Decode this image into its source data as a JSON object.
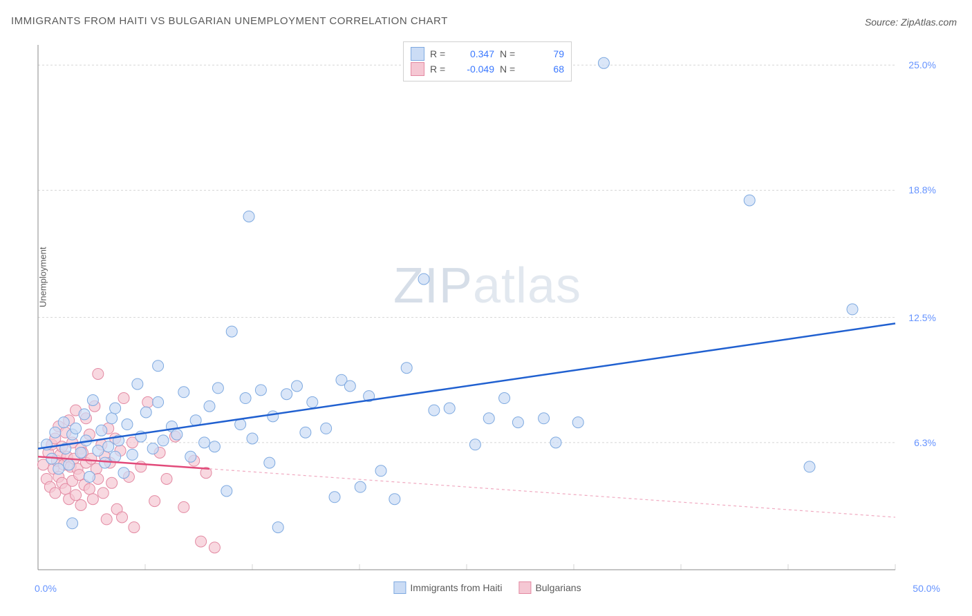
{
  "title": "IMMIGRANTS FROM HAITI VS BULGARIAN UNEMPLOYMENT CORRELATION CHART",
  "source": "Source: ZipAtlas.com",
  "watermark": {
    "bold": "ZIP",
    "light": "atlas"
  },
  "chart": {
    "type": "scatter",
    "ylabel": "Unemployment",
    "xlim": [
      0,
      50
    ],
    "ylim": [
      0,
      26
    ],
    "xtick_labels": {
      "min": "0.0%",
      "max": "50.0%"
    },
    "ytick_labels": [
      "6.3%",
      "12.5%",
      "18.8%",
      "25.0%"
    ],
    "ytick_values": [
      6.3,
      12.5,
      18.8,
      25.0
    ],
    "xtick_values": [
      0,
      6.25,
      12.5,
      18.75,
      25,
      31.25,
      37.5,
      43.75,
      50
    ],
    "grid_color": "#d5d5d5",
    "axis_color": "#888888",
    "background_color": "#ffffff",
    "marker_radius": 8,
    "marker_stroke_width": 1,
    "series": [
      {
        "name": "Immigrants from Haiti",
        "fill": "#cbdcf5",
        "stroke": "#7da9e0",
        "fill_opacity": 0.7,
        "R": "0.347",
        "N": "79",
        "regression": {
          "x1": 0,
          "y1": 6.0,
          "x2": 50,
          "y2": 12.2,
          "stroke": "#2060d0",
          "width": 2.5,
          "dash": ""
        },
        "points": [
          [
            0.5,
            6.2
          ],
          [
            0.8,
            5.5
          ],
          [
            1.0,
            6.8
          ],
          [
            1.2,
            5.0
          ],
          [
            1.5,
            7.3
          ],
          [
            1.6,
            6.0
          ],
          [
            1.8,
            5.2
          ],
          [
            2.0,
            6.7
          ],
          [
            2.2,
            7.0
          ],
          [
            2.5,
            5.8
          ],
          [
            2.7,
            7.7
          ],
          [
            2.8,
            6.4
          ],
          [
            3.0,
            4.6
          ],
          [
            3.2,
            8.4
          ],
          [
            3.5,
            5.9
          ],
          [
            3.7,
            6.9
          ],
          [
            3.9,
            5.3
          ],
          [
            4.1,
            6.1
          ],
          [
            4.3,
            7.5
          ],
          [
            4.5,
            5.6
          ],
          [
            4.5,
            8.0
          ],
          [
            4.7,
            6.4
          ],
          [
            5.0,
            4.8
          ],
          [
            5.2,
            7.2
          ],
          [
            5.5,
            5.7
          ],
          [
            5.8,
            9.2
          ],
          [
            6.0,
            6.6
          ],
          [
            6.3,
            7.8
          ],
          [
            6.7,
            6.0
          ],
          [
            7.0,
            8.3
          ],
          [
            7.0,
            10.1
          ],
          [
            7.3,
            6.4
          ],
          [
            7.8,
            7.1
          ],
          [
            8.1,
            6.7
          ],
          [
            8.5,
            8.8
          ],
          [
            8.9,
            5.6
          ],
          [
            9.2,
            7.4
          ],
          [
            9.7,
            6.3
          ],
          [
            10.0,
            8.1
          ],
          [
            10.3,
            6.1
          ],
          [
            10.5,
            9.0
          ],
          [
            11.0,
            3.9
          ],
          [
            11.3,
            11.8
          ],
          [
            11.8,
            7.2
          ],
          [
            12.1,
            8.5
          ],
          [
            12.3,
            17.5
          ],
          [
            12.5,
            6.5
          ],
          [
            13.0,
            8.9
          ],
          [
            13.5,
            5.3
          ],
          [
            13.7,
            7.6
          ],
          [
            14.0,
            2.1
          ],
          [
            14.5,
            8.7
          ],
          [
            15.1,
            9.1
          ],
          [
            15.6,
            6.8
          ],
          [
            16.0,
            8.3
          ],
          [
            16.8,
            7.0
          ],
          [
            17.3,
            3.6
          ],
          [
            17.7,
            9.4
          ],
          [
            18.2,
            9.1
          ],
          [
            18.8,
            4.1
          ],
          [
            19.3,
            8.6
          ],
          [
            20.0,
            4.9
          ],
          [
            20.8,
            3.5
          ],
          [
            21.5,
            10.0
          ],
          [
            22.5,
            14.4
          ],
          [
            23.1,
            7.9
          ],
          [
            24.0,
            8.0
          ],
          [
            25.5,
            6.2
          ],
          [
            26.3,
            7.5
          ],
          [
            27.2,
            8.5
          ],
          [
            28.0,
            7.3
          ],
          [
            29.5,
            7.5
          ],
          [
            30.2,
            6.3
          ],
          [
            31.5,
            7.3
          ],
          [
            33.0,
            25.1
          ],
          [
            41.5,
            18.3
          ],
          [
            45.0,
            5.1
          ],
          [
            47.5,
            12.9
          ],
          [
            2.0,
            2.3
          ]
        ]
      },
      {
        "name": "Bulgarians",
        "fill": "#f5c7d3",
        "stroke": "#e389a2",
        "fill_opacity": 0.7,
        "R": "-0.049",
        "N": "68",
        "regression": {
          "x1": 0,
          "y1": 5.6,
          "x2": 10,
          "y2": 5.0,
          "stroke": "#e24a7a",
          "width": 2.5,
          "dash": ""
        },
        "regression_ext": {
          "x1": 10,
          "y1": 5.0,
          "x2": 50,
          "y2": 2.6,
          "stroke": "#f0a9c0",
          "width": 1.2,
          "dash": "4,4"
        },
        "points": [
          [
            0.3,
            5.2
          ],
          [
            0.5,
            4.5
          ],
          [
            0.6,
            5.8
          ],
          [
            0.7,
            4.1
          ],
          [
            0.8,
            6.2
          ],
          [
            0.9,
            5.0
          ],
          [
            1.0,
            3.8
          ],
          [
            1.0,
            6.5
          ],
          [
            1.1,
            5.4
          ],
          [
            1.2,
            4.6
          ],
          [
            1.2,
            7.1
          ],
          [
            1.3,
            5.7
          ],
          [
            1.4,
            4.3
          ],
          [
            1.4,
            6.1
          ],
          [
            1.5,
            5.2
          ],
          [
            1.6,
            4.0
          ],
          [
            1.6,
            6.8
          ],
          [
            1.7,
            5.6
          ],
          [
            1.8,
            3.5
          ],
          [
            1.8,
            7.4
          ],
          [
            1.9,
            5.1
          ],
          [
            2.0,
            4.4
          ],
          [
            2.0,
            6.3
          ],
          [
            2.1,
            5.5
          ],
          [
            2.2,
            3.7
          ],
          [
            2.2,
            7.9
          ],
          [
            2.3,
            5.0
          ],
          [
            2.4,
            4.7
          ],
          [
            2.5,
            6.0
          ],
          [
            2.5,
            3.2
          ],
          [
            2.6,
            5.8
          ],
          [
            2.7,
            4.2
          ],
          [
            2.8,
            7.5
          ],
          [
            2.8,
            5.3
          ],
          [
            3.0,
            4.0
          ],
          [
            3.0,
            6.7
          ],
          [
            3.1,
            5.5
          ],
          [
            3.2,
            3.5
          ],
          [
            3.3,
            8.1
          ],
          [
            3.4,
            5.0
          ],
          [
            3.5,
            4.5
          ],
          [
            3.5,
            9.7
          ],
          [
            3.7,
            6.2
          ],
          [
            3.8,
            3.8
          ],
          [
            3.9,
            5.6
          ],
          [
            4.0,
            2.5
          ],
          [
            4.1,
            7.0
          ],
          [
            4.2,
            5.3
          ],
          [
            4.3,
            4.3
          ],
          [
            4.5,
            6.5
          ],
          [
            4.6,
            3.0
          ],
          [
            4.8,
            5.9
          ],
          [
            4.9,
            2.6
          ],
          [
            5.0,
            8.5
          ],
          [
            5.3,
            4.6
          ],
          [
            5.5,
            6.3
          ],
          [
            5.6,
            2.1
          ],
          [
            6.0,
            5.1
          ],
          [
            6.4,
            8.3
          ],
          [
            6.8,
            3.4
          ],
          [
            7.1,
            5.8
          ],
          [
            7.5,
            4.5
          ],
          [
            8.0,
            6.6
          ],
          [
            8.5,
            3.1
          ],
          [
            9.1,
            5.4
          ],
          [
            9.5,
            1.4
          ],
          [
            9.8,
            4.8
          ],
          [
            10.3,
            1.1
          ]
        ]
      }
    ],
    "legend_top": {
      "rows": [
        {
          "sw_fill": "#cbdcf5",
          "sw_stroke": "#7da9e0",
          "R_label": "R =",
          "R_val": "0.347",
          "N_label": "N =",
          "N_val": "79"
        },
        {
          "sw_fill": "#f5c7d3",
          "sw_stroke": "#e389a2",
          "R_label": "R =",
          "R_val": "-0.049",
          "N_label": "N =",
          "N_val": "68"
        }
      ]
    },
    "legend_bottom": [
      {
        "sw_fill": "#cbdcf5",
        "sw_stroke": "#7da9e0",
        "label": "Immigrants from Haiti"
      },
      {
        "sw_fill": "#f5c7d3",
        "sw_stroke": "#e389a2",
        "label": "Bulgarians"
      }
    ]
  }
}
